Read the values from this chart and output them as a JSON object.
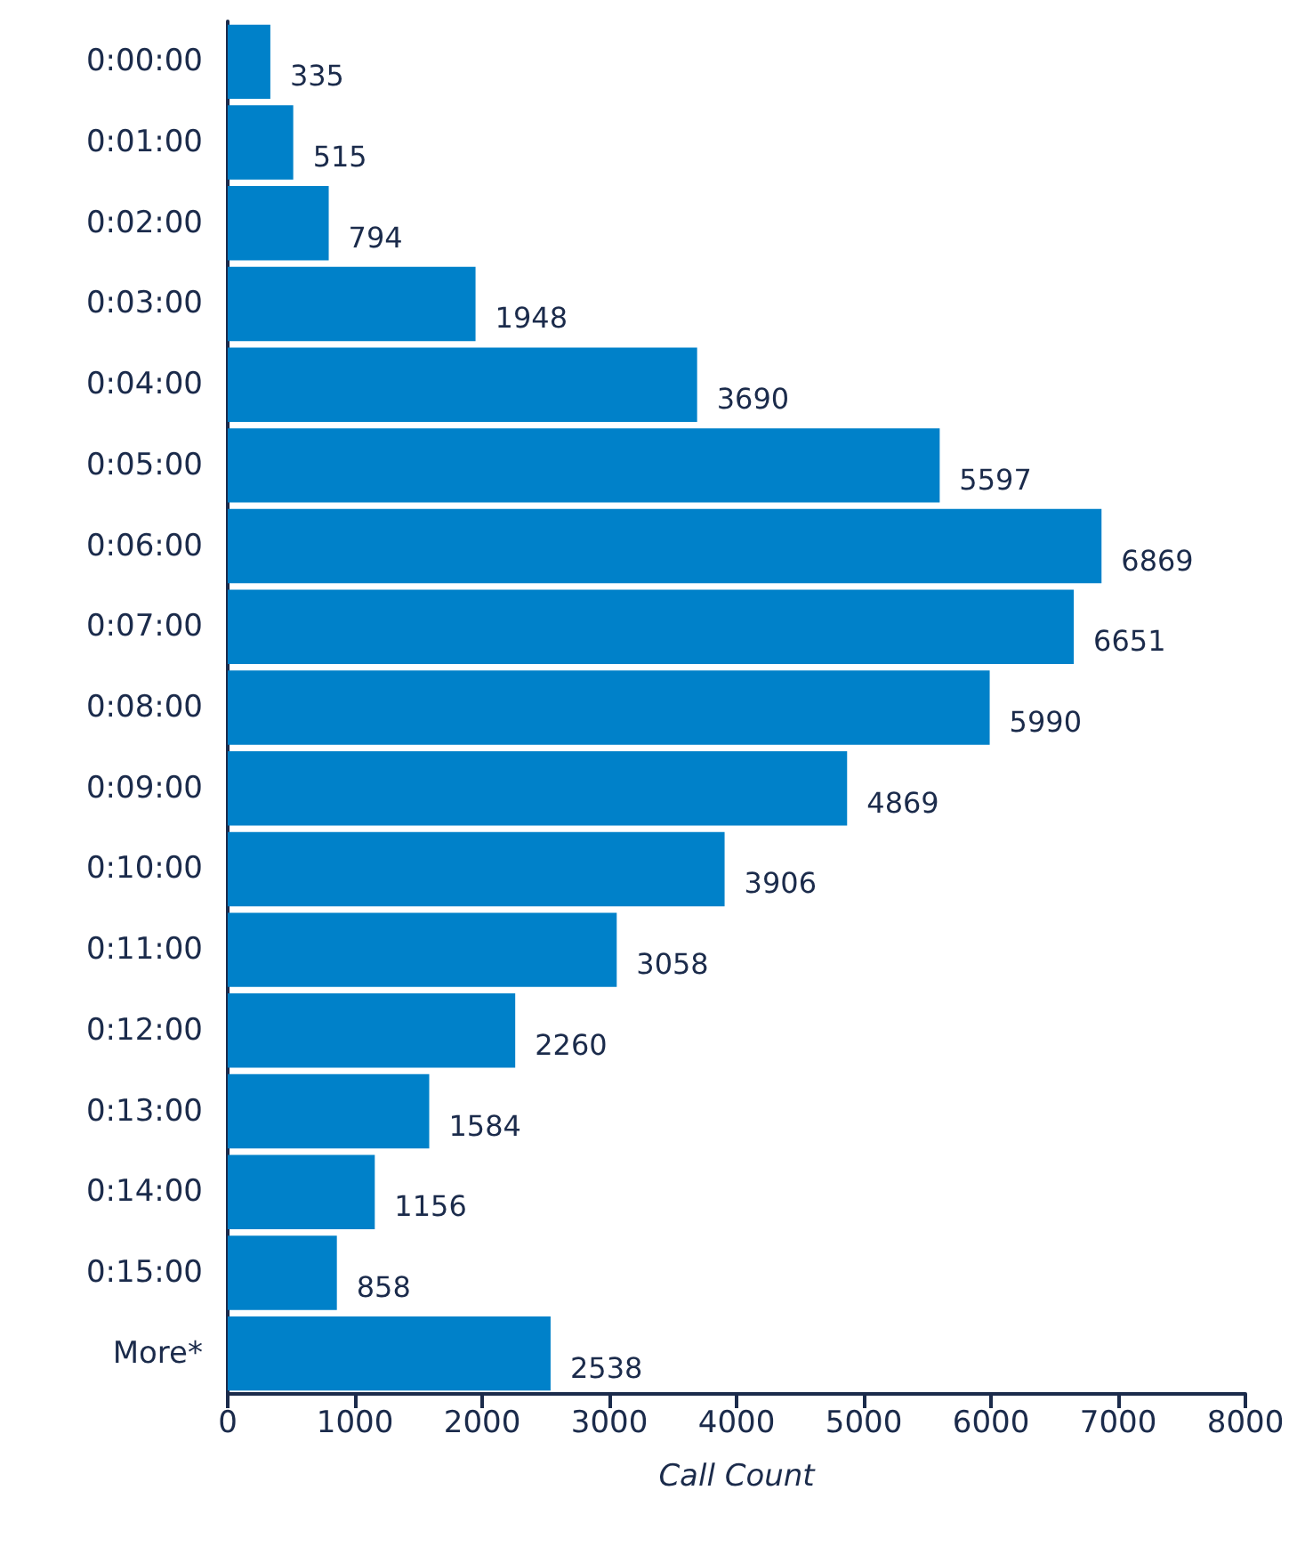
{
  "chart_data": {
    "type": "bar",
    "orientation": "horizontal",
    "xlabel": "Call Count",
    "categories": [
      "0:00:00",
      "0:01:00",
      "0:02:00",
      "0:03:00",
      "0:04:00",
      "0:05:00",
      "0:06:00",
      "0:07:00",
      "0:08:00",
      "0:09:00",
      "0:10:00",
      "0:11:00",
      "0:12:00",
      "0:13:00",
      "0:14:00",
      "0:15:00",
      "More*"
    ],
    "values": [
      335,
      515,
      794,
      1948,
      3690,
      5597,
      6869,
      6651,
      5990,
      4869,
      3906,
      3058,
      2260,
      1584,
      1156,
      858,
      2538
    ],
    "color": "#0081c9",
    "data_labels": true,
    "grid": false,
    "xlim": [
      0,
      8000
    ],
    "xticks": [
      0,
      1000,
      2000,
      3000,
      4000,
      5000,
      6000,
      7000,
      8000
    ]
  }
}
